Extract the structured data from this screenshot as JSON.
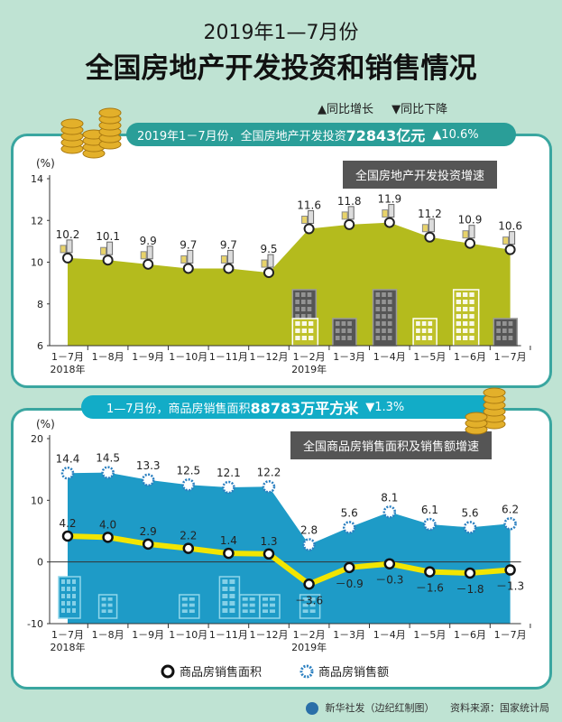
{
  "title_line1": "2019年1—7月份",
  "title_line2": "全国房地产开发投资和销售情况",
  "legend": {
    "up": "▲同比增长",
    "down": "▼同比下降"
  },
  "banner1": {
    "prefix": "2019年1－7月份，全国房地产开发投资",
    "value": "72843亿元",
    "change": "▲10.6%"
  },
  "banner2": {
    "prefix": "1—7月份，商品房销售面积",
    "value": "88783万平方米",
    "change": "▼1.3%"
  },
  "tag1": "全国房地产开发投资增速",
  "tag2": "全国商品房销售面积及销售额增速",
  "footer": {
    "source_left": "新华社发（边纪红制图）",
    "source_right": "资料来源：国家统计局"
  },
  "chart_data": [
    {
      "type": "area",
      "unit_label": "(%)",
      "categories": [
        "1－7月",
        "1－8月",
        "1－9月",
        "1－10月",
        "1－11月",
        "1－12月",
        "1－2月",
        "1－3月",
        "1－4月",
        "1－5月",
        "1－6月",
        "1－7月"
      ],
      "year_labels": [
        {
          "index": 0,
          "text": "2018年"
        },
        {
          "index": 6,
          "text": "2019年"
        }
      ],
      "series": [
        {
          "values": [
            10.2,
            10.1,
            9.9,
            9.7,
            9.7,
            9.5,
            11.6,
            11.8,
            11.9,
            11.2,
            10.9,
            10.6
          ]
        }
      ],
      "ylim": [
        6,
        14
      ],
      "yticks": [
        6,
        8,
        10,
        12,
        14
      ],
      "colors": {
        "area": "#b4bb1d",
        "point_fill": "#ffffff",
        "point_stroke": "#222222"
      }
    },
    {
      "type": "area+line",
      "unit_label": "(%)",
      "categories": [
        "1－7月",
        "1－8月",
        "1－9月",
        "1－10月",
        "1－11月",
        "1－12月",
        "1－2月",
        "1－3月",
        "1－4月",
        "1－5月",
        "1－6月",
        "1－7月"
      ],
      "year_labels": [
        {
          "index": 0,
          "text": "2018年"
        },
        {
          "index": 6,
          "text": "2019年"
        }
      ],
      "series": [
        {
          "name": "商品房销售面积",
          "values": [
            4.2,
            4.0,
            2.9,
            2.2,
            1.4,
            1.3,
            -3.6,
            -0.9,
            -0.3,
            -1.6,
            -1.8,
            -1.3
          ],
          "labels": [
            "4.2",
            "4.0",
            "2.9",
            "2.2",
            "1.4",
            "1.3",
            "－3.6",
            "－0.9",
            "－0.3",
            "－1.6",
            "－1.8",
            "－1.3"
          ],
          "color": "#f2e500"
        },
        {
          "name": "商品房销售额",
          "values": [
            14.4,
            14.5,
            13.3,
            12.5,
            12.1,
            12.2,
            2.8,
            5.6,
            8.1,
            6.1,
            5.6,
            6.2
          ],
          "labels": [
            "14.4",
            "14.5",
            "13.3",
            "12.5",
            "12.1",
            "12.2",
            "2.8",
            "5.6",
            "8.1",
            "6.1",
            "5.6",
            "6.2"
          ],
          "color": "#1e9bc7"
        }
      ],
      "ylim": [
        -10,
        20
      ],
      "yticks": [
        -10,
        0,
        10,
        20
      ]
    }
  ]
}
